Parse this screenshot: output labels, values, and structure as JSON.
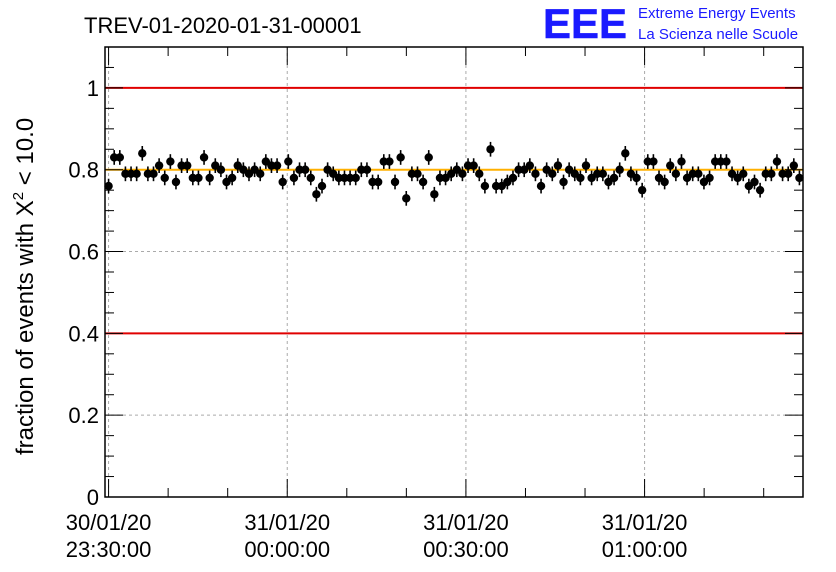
{
  "chart_data": {
    "type": "scatter",
    "title": "TREV-01-2020-01-31-00001",
    "ylabel_main": "fraction of events with ",
    "ylabel_chi": "X",
    "ylabel_exp": "2",
    "ylabel_tail": " < 10.0",
    "logo": {
      "mark": "EEE",
      "line1": "Extreme Energy Events",
      "line2": "La Scienza nelle Scuole",
      "color": "#1a1aff"
    },
    "ylim": [
      0,
      1.1
    ],
    "yticks": [
      "0",
      "0.2",
      "0.4",
      "0.6",
      "0.8",
      "1"
    ],
    "xlim_minutes": [
      -0.3,
      58.3
    ],
    "xtick_labels": [
      {
        "minutes": 0,
        "date": "30/01/20",
        "time": "23:30:00"
      },
      {
        "minutes": 15,
        "date": "31/01/20",
        "time": "00:00:00"
      },
      {
        "minutes": 30,
        "date": "31/01/20",
        "time": "00:30:00"
      },
      {
        "minutes": 45,
        "date": "31/01/20",
        "time": "01:00:00"
      }
    ],
    "reference_lines": [
      {
        "y": 1.0,
        "color": "#e00000"
      },
      {
        "y": 0.4,
        "color": "#e00000"
      },
      {
        "y": 0.8,
        "color": "#ffb000"
      }
    ],
    "error_bar": 0.018,
    "grid": true,
    "values": [
      0.76,
      0.83,
      0.83,
      0.79,
      0.79,
      0.79,
      0.84,
      0.79,
      0.79,
      0.81,
      0.78,
      0.82,
      0.77,
      0.81,
      0.81,
      0.78,
      0.78,
      0.83,
      0.78,
      0.81,
      0.8,
      0.77,
      0.78,
      0.81,
      0.8,
      0.79,
      0.8,
      0.79,
      0.82,
      0.81,
      0.81,
      0.77,
      0.82,
      0.78,
      0.8,
      0.8,
      0.78,
      0.74,
      0.76,
      0.8,
      0.79,
      0.78,
      0.78,
      0.78,
      0.78,
      0.8,
      0.8,
      0.77,
      0.77,
      0.82,
      0.82,
      0.77,
      0.83,
      0.73,
      0.79,
      0.79,
      0.77,
      0.83,
      0.74,
      0.78,
      0.78,
      0.79,
      0.8,
      0.79,
      0.81,
      0.81,
      0.79,
      0.76,
      0.85,
      0.76,
      0.76,
      0.77,
      0.78,
      0.8,
      0.8,
      0.81,
      0.79,
      0.76,
      0.8,
      0.79,
      0.81,
      0.77,
      0.8,
      0.79,
      0.78,
      0.81,
      0.78,
      0.79,
      0.79,
      0.77,
      0.78,
      0.8,
      0.84,
      0.79,
      0.78,
      0.75,
      0.82,
      0.82,
      0.78,
      0.77,
      0.81,
      0.79,
      0.82,
      0.78,
      0.79,
      0.79,
      0.77,
      0.78,
      0.82,
      0.82,
      0.82,
      0.79,
      0.78,
      0.79,
      0.76,
      0.77,
      0.75,
      0.79,
      0.79,
      0.82,
      0.79,
      0.79,
      0.81,
      0.78
    ]
  }
}
